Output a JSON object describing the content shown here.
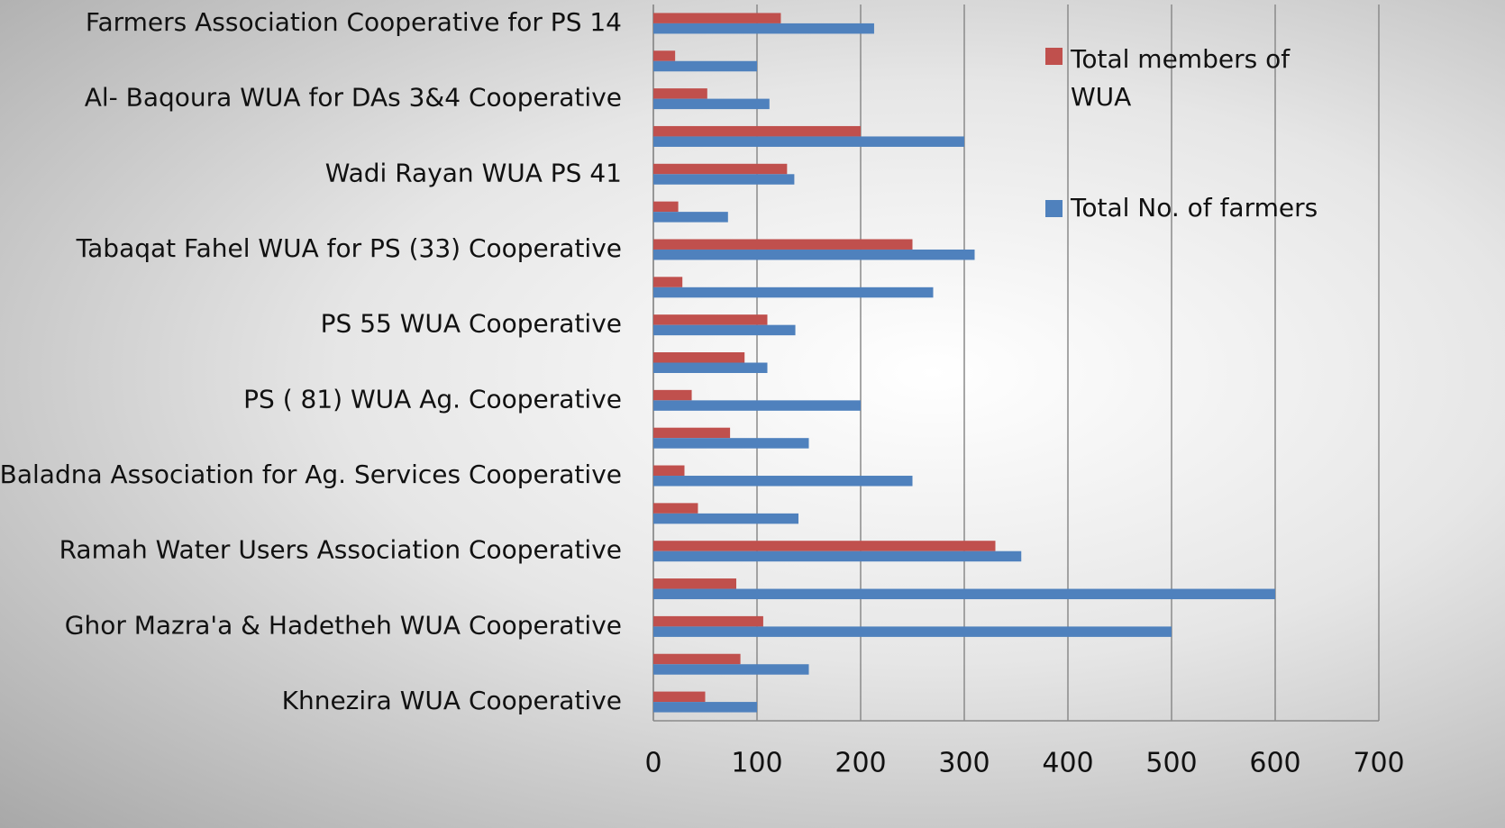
{
  "chart_data": {
    "type": "bar",
    "orientation": "horizontal",
    "categories": [
      "Farmers Association Cooperative for PS 14",
      null,
      "Al- Baqoura WUA for DAs 3&4 Cooperative",
      null,
      "Wadi Rayan WUA PS 41",
      null,
      "Tabaqat Fahel WUA for PS (33) Cooperative",
      null,
      "PS 55 WUA Cooperative",
      null,
      "PS ( 81) WUA Ag. Cooperative",
      null,
      "Baladna Association for Ag. Services Cooperative",
      null,
      "Ramah Water Users Association Cooperative",
      null,
      "Ghor Mazra'a & Hadetheh WUA Cooperative",
      null,
      "Khnezira WUA Cooperative"
    ],
    "series": [
      {
        "name": "Total members of WUA",
        "color": "#c0504d",
        "values": [
          123,
          21,
          52,
          200,
          129,
          24,
          250,
          28,
          110,
          88,
          37,
          74,
          30,
          43,
          330,
          80,
          106,
          84,
          50
        ]
      },
      {
        "name": "Total No. of farmers",
        "color": "#4f81bd",
        "values": [
          213,
          100,
          112,
          300,
          136,
          72,
          310,
          270,
          137,
          110,
          200,
          150,
          250,
          140,
          355,
          600,
          500,
          150,
          100
        ]
      }
    ],
    "xlim": [
      0,
      700
    ],
    "xticks": [
      0,
      100,
      200,
      300,
      400,
      500,
      600,
      700
    ],
    "grid": true,
    "legend": "upper right"
  }
}
